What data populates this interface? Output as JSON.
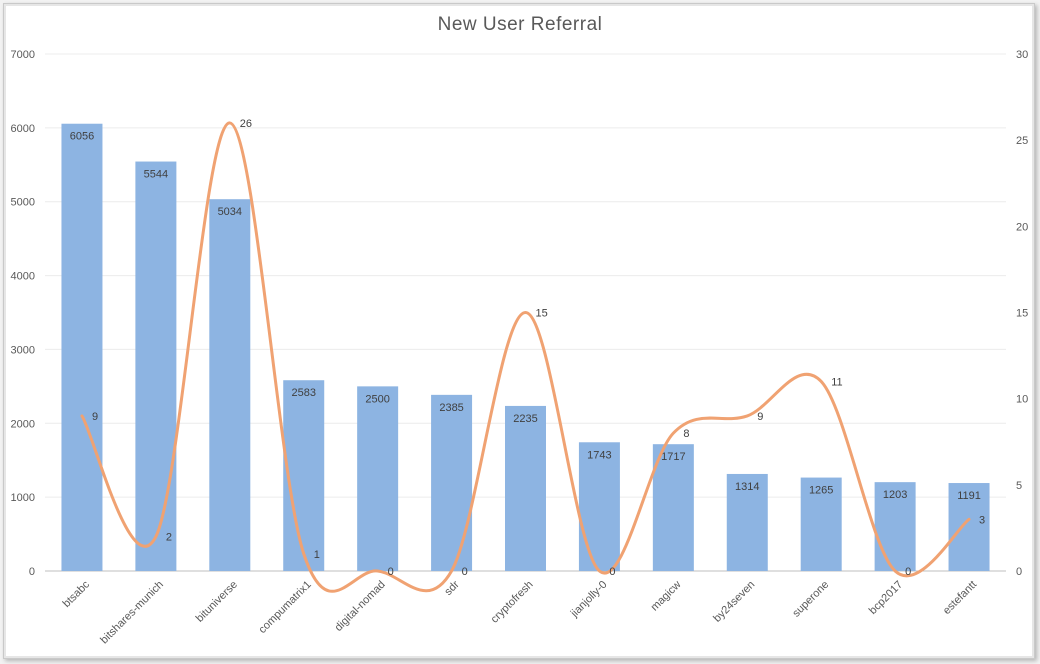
{
  "chart_data": {
    "type": "bar",
    "title": "New User Referral",
    "categories": [
      "btsabc",
      "bitshares-munich",
      "bituniverse",
      "compumatrix1",
      "digital-nomad",
      "sdr",
      "cryptofresh",
      "jianjolly-0",
      "magicw",
      "by24seven",
      "superone",
      "bcp2017",
      "estefantt"
    ],
    "series": [
      {
        "type": "bar",
        "axis": "primary",
        "color": "#8db4e2",
        "values": [
          6056,
          5544,
          5034,
          2583,
          2500,
          2385,
          2235,
          1743,
          1717,
          1314,
          1265,
          1203,
          1191
        ]
      },
      {
        "type": "smooth-line",
        "axis": "secondary",
        "color": "#f0a272",
        "values": [
          9,
          2,
          26,
          1,
          0,
          0,
          15,
          0,
          8,
          9,
          11,
          0,
          3
        ]
      }
    ],
    "y_primary": {
      "min": 0,
      "max": 7000,
      "ticks": [
        "0",
        "1000",
        "2000",
        "3000",
        "4000",
        "5000",
        "6000",
        "7000"
      ]
    },
    "y_secondary": {
      "min": 0,
      "max": 30,
      "ticks": [
        "0",
        "5",
        "10",
        "15",
        "20",
        "25",
        "30"
      ]
    },
    "grid": true,
    "legend": "none",
    "xlabel": "",
    "ylabel": ""
  }
}
